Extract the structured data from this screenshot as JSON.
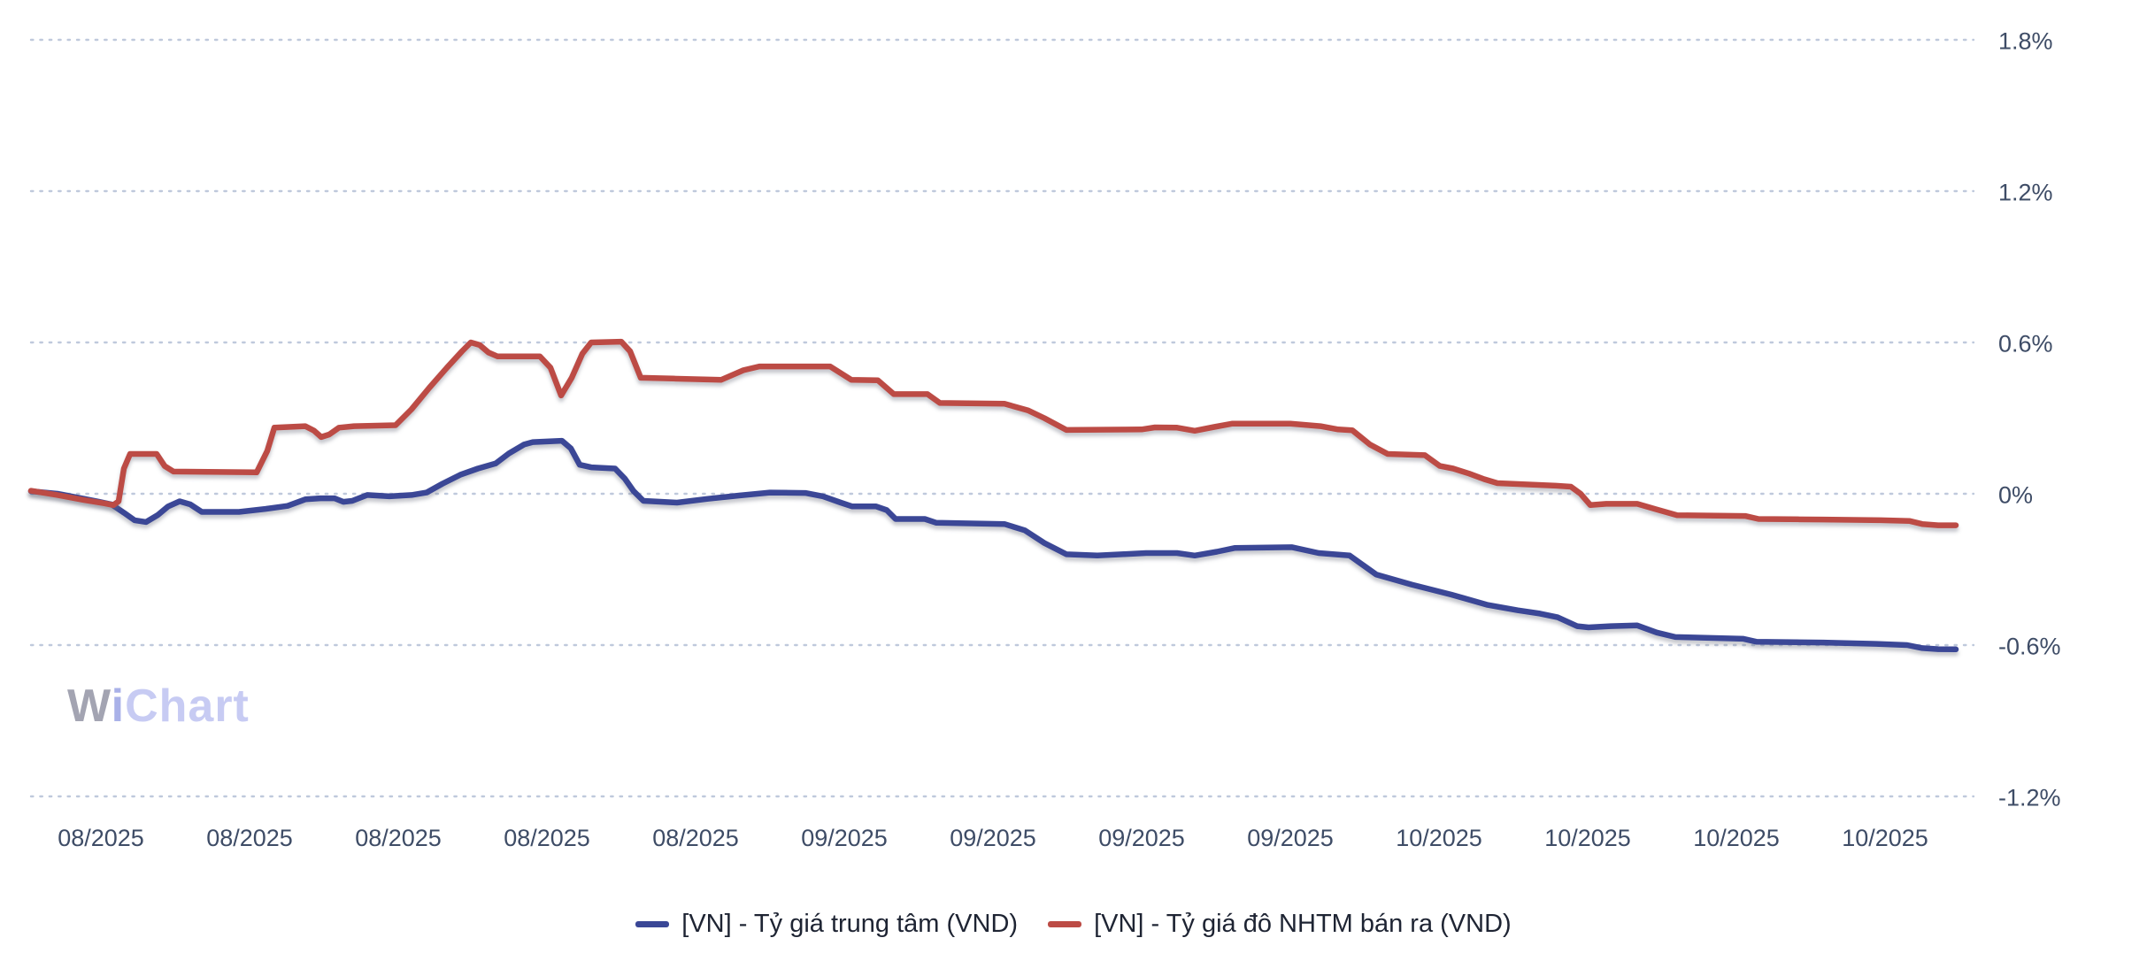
{
  "watermark": {
    "part_w": "W",
    "part_i": "i",
    "part_chart": "Chart",
    "color_w": "#a3a4b2",
    "color_i": "#a9b1e8",
    "color_chart": "#c7cbf3"
  },
  "colors": {
    "background": "#ffffff",
    "grid_line": "#bfc9dc",
    "axis_text": "#3e4c66",
    "legend_text": "#1e2433",
    "series_blue": "#3a4796",
    "series_red": "#bc4b45"
  },
  "chart_data": {
    "type": "line",
    "title": "",
    "xlabel": "",
    "ylabel": "",
    "grid": "horizontal-dotted",
    "legend_position": "bottom-center",
    "y_axis": {
      "unit": "%",
      "range": [
        -1.2,
        1.8
      ],
      "tick_labels": [
        "1.8%",
        "1.2%",
        "0.6%",
        "0%",
        "-0.6%",
        "-1.2%"
      ],
      "tick_values": [
        1.8,
        1.2,
        0.6,
        0,
        -0.6,
        -1.2
      ]
    },
    "x_axis": {
      "tick_labels": [
        "08/2025",
        "08/2025",
        "08/2025",
        "08/2025",
        "08/2025",
        "09/2025",
        "09/2025",
        "09/2025",
        "09/2025",
        "10/2025",
        "10/2025",
        "10/2025",
        "10/2025"
      ]
    },
    "series": [
      {
        "name": "[VN] - Tỷ giá trung tâm (VND)",
        "color": "#3a4796",
        "unit": "%",
        "points": [
          [
            35,
            0.01
          ],
          [
            65,
            0.0
          ],
          [
            95,
            -0.02
          ],
          [
            112,
            -0.032
          ],
          [
            126,
            -0.042
          ],
          [
            140,
            -0.075
          ],
          [
            152,
            -0.105
          ],
          [
            165,
            -0.112
          ],
          [
            178,
            -0.085
          ],
          [
            190,
            -0.05
          ],
          [
            203,
            -0.03
          ],
          [
            215,
            -0.042
          ],
          [
            228,
            -0.072
          ],
          [
            270,
            -0.072
          ],
          [
            300,
            -0.06
          ],
          [
            325,
            -0.048
          ],
          [
            345,
            -0.022
          ],
          [
            362,
            -0.018
          ],
          [
            378,
            -0.018
          ],
          [
            388,
            -0.032
          ],
          [
            398,
            -0.028
          ],
          [
            415,
            -0.005
          ],
          [
            440,
            -0.01
          ],
          [
            465,
            -0.005
          ],
          [
            482,
            0.005
          ],
          [
            500,
            0.04
          ],
          [
            520,
            0.075
          ],
          [
            540,
            0.1
          ],
          [
            560,
            0.12
          ],
          [
            575,
            0.16
          ],
          [
            592,
            0.195
          ],
          [
            602,
            0.205
          ],
          [
            635,
            0.21
          ],
          [
            645,
            0.18
          ],
          [
            655,
            0.115
          ],
          [
            668,
            0.105
          ],
          [
            695,
            0.1
          ],
          [
            706,
            0.06
          ],
          [
            716,
            0.01
          ],
          [
            727,
            -0.028
          ],
          [
            765,
            -0.035
          ],
          [
            800,
            -0.02
          ],
          [
            835,
            -0.007
          ],
          [
            870,
            0.005
          ],
          [
            910,
            0.003
          ],
          [
            930,
            -0.01
          ],
          [
            950,
            -0.035
          ],
          [
            963,
            -0.05
          ],
          [
            990,
            -0.05
          ],
          [
            1002,
            -0.065
          ],
          [
            1012,
            -0.1
          ],
          [
            1045,
            -0.1
          ],
          [
            1058,
            -0.115
          ],
          [
            1135,
            -0.12
          ],
          [
            1158,
            -0.145
          ],
          [
            1180,
            -0.195
          ],
          [
            1205,
            -0.24
          ],
          [
            1240,
            -0.245
          ],
          [
            1295,
            -0.235
          ],
          [
            1330,
            -0.235
          ],
          [
            1350,
            -0.245
          ],
          [
            1375,
            -0.23
          ],
          [
            1395,
            -0.215
          ],
          [
            1460,
            -0.212
          ],
          [
            1490,
            -0.235
          ],
          [
            1525,
            -0.245
          ],
          [
            1555,
            -0.32
          ],
          [
            1595,
            -0.36
          ],
          [
            1640,
            -0.4
          ],
          [
            1680,
            -0.44
          ],
          [
            1715,
            -0.462
          ],
          [
            1740,
            -0.475
          ],
          [
            1760,
            -0.49
          ],
          [
            1782,
            -0.525
          ],
          [
            1795,
            -0.53
          ],
          [
            1820,
            -0.525
          ],
          [
            1850,
            -0.522
          ],
          [
            1872,
            -0.55
          ],
          [
            1893,
            -0.568
          ],
          [
            1970,
            -0.575
          ],
          [
            1985,
            -0.587
          ],
          [
            2060,
            -0.59
          ],
          [
            2120,
            -0.595
          ],
          [
            2155,
            -0.6
          ],
          [
            2172,
            -0.612
          ],
          [
            2190,
            -0.616
          ],
          [
            2210,
            -0.617
          ]
        ]
      },
      {
        "name": "[VN] - Tỷ giá đô NHTM bán ra (VND)",
        "color": "#bc4b45",
        "unit": "%",
        "points": [
          [
            35,
            0.012
          ],
          [
            65,
            -0.005
          ],
          [
            95,
            -0.025
          ],
          [
            118,
            -0.038
          ],
          [
            128,
            -0.045
          ],
          [
            134,
            -0.03
          ],
          [
            140,
            0.1
          ],
          [
            147,
            0.158
          ],
          [
            177,
            0.158
          ],
          [
            186,
            0.11
          ],
          [
            196,
            0.088
          ],
          [
            290,
            0.085
          ],
          [
            302,
            0.17
          ],
          [
            310,
            0.262
          ],
          [
            345,
            0.268
          ],
          [
            355,
            0.25
          ],
          [
            363,
            0.225
          ],
          [
            372,
            0.235
          ],
          [
            383,
            0.262
          ],
          [
            400,
            0.268
          ],
          [
            447,
            0.272
          ],
          [
            465,
            0.335
          ],
          [
            485,
            0.42
          ],
          [
            505,
            0.5
          ],
          [
            522,
            0.565
          ],
          [
            532,
            0.6
          ],
          [
            542,
            0.59
          ],
          [
            552,
            0.56
          ],
          [
            562,
            0.545
          ],
          [
            610,
            0.545
          ],
          [
            622,
            0.5
          ],
          [
            634,
            0.39
          ],
          [
            646,
            0.46
          ],
          [
            658,
            0.555
          ],
          [
            668,
            0.6
          ],
          [
            702,
            0.603
          ],
          [
            712,
            0.565
          ],
          [
            724,
            0.46
          ],
          [
            815,
            0.452
          ],
          [
            840,
            0.49
          ],
          [
            858,
            0.505
          ],
          [
            938,
            0.505
          ],
          [
            962,
            0.452
          ],
          [
            992,
            0.45
          ],
          [
            1010,
            0.395
          ],
          [
            1048,
            0.395
          ],
          [
            1062,
            0.36
          ],
          [
            1135,
            0.357
          ],
          [
            1162,
            0.33
          ],
          [
            1180,
            0.3
          ],
          [
            1205,
            0.253
          ],
          [
            1290,
            0.255
          ],
          [
            1305,
            0.263
          ],
          [
            1330,
            0.262
          ],
          [
            1350,
            0.25
          ],
          [
            1372,
            0.265
          ],
          [
            1392,
            0.278
          ],
          [
            1458,
            0.278
          ],
          [
            1492,
            0.268
          ],
          [
            1512,
            0.255
          ],
          [
            1528,
            0.252
          ],
          [
            1548,
            0.195
          ],
          [
            1568,
            0.158
          ],
          [
            1610,
            0.153
          ],
          [
            1627,
            0.11
          ],
          [
            1642,
            0.1
          ],
          [
            1660,
            0.08
          ],
          [
            1677,
            0.058
          ],
          [
            1692,
            0.042
          ],
          [
            1758,
            0.032
          ],
          [
            1775,
            0.028
          ],
          [
            1786,
            0.0
          ],
          [
            1797,
            -0.045
          ],
          [
            1815,
            -0.04
          ],
          [
            1850,
            -0.04
          ],
          [
            1872,
            -0.062
          ],
          [
            1895,
            -0.085
          ],
          [
            1972,
            -0.088
          ],
          [
            1987,
            -0.1
          ],
          [
            2060,
            -0.102
          ],
          [
            2125,
            -0.105
          ],
          [
            2158,
            -0.108
          ],
          [
            2172,
            -0.12
          ],
          [
            2190,
            -0.125
          ],
          [
            2210,
            -0.125
          ]
        ]
      }
    ]
  }
}
